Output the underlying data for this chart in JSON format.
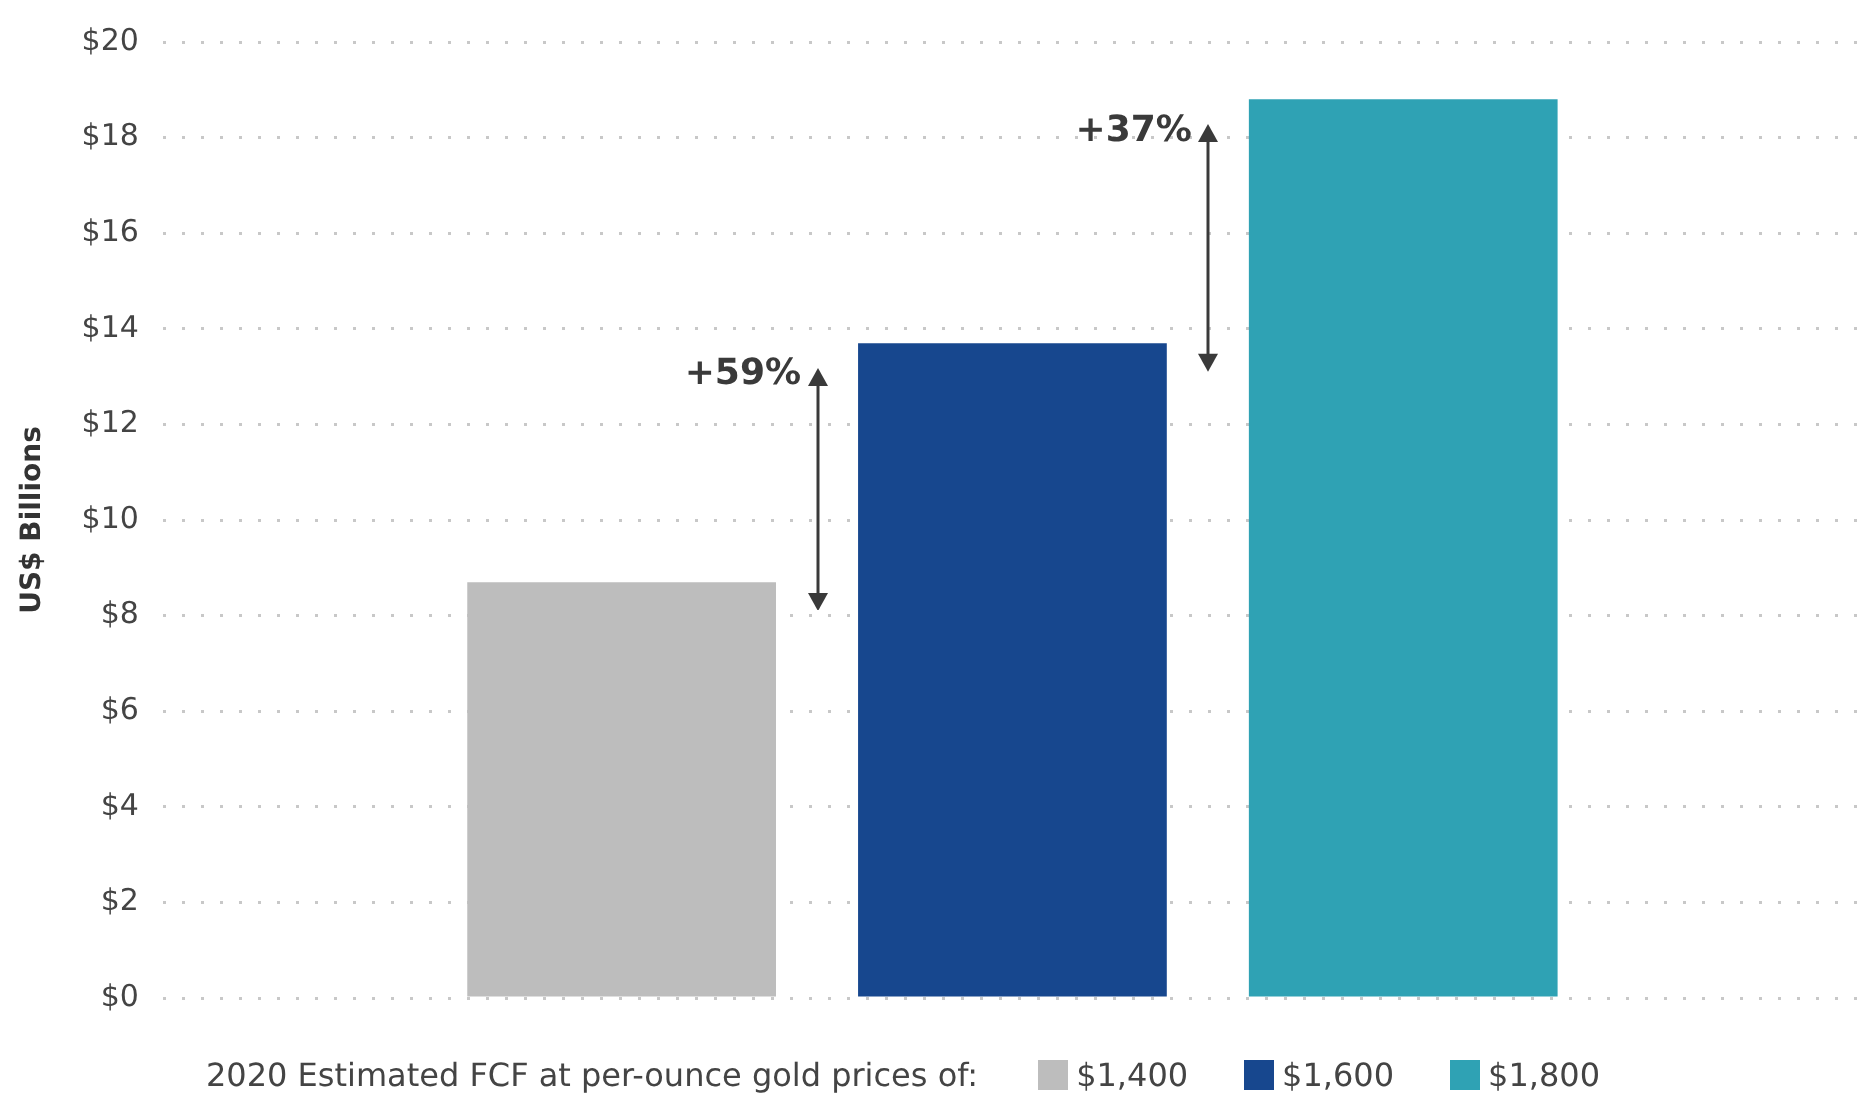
{
  "chart_data": {
    "type": "bar",
    "ylabel": "US$ Billions",
    "legend_title": "2020 Estimated FCF at per-ounce gold prices of:",
    "categories": [
      null
    ],
    "series": [
      {
        "name": "$1,400",
        "color": "#bdbdbd",
        "values": [
          8.7
        ]
      },
      {
        "name": "$1,600",
        "color": "#17478e",
        "values": [
          13.7
        ]
      },
      {
        "name": "$1,800",
        "color": "#2fa2b4",
        "values": [
          18.8
        ]
      }
    ],
    "ylim": [
      0,
      20
    ],
    "yticks": [
      {
        "value": 0,
        "label": "$0"
      },
      {
        "value": 2,
        "label": "$2"
      },
      {
        "value": 4,
        "label": "$4"
      },
      {
        "value": 6,
        "label": "$6"
      },
      {
        "value": 8,
        "label": "$8"
      },
      {
        "value": 10,
        "label": "$10"
      },
      {
        "value": 12,
        "label": "$12"
      },
      {
        "value": 14,
        "label": "$14"
      },
      {
        "value": 16,
        "label": "$16"
      },
      {
        "value": 18,
        "label": "$18"
      },
      {
        "value": 20,
        "label": "$20"
      }
    ],
    "grid": "y",
    "legend": "bottom",
    "annotations": [
      "+59%",
      "+37%"
    ]
  }
}
